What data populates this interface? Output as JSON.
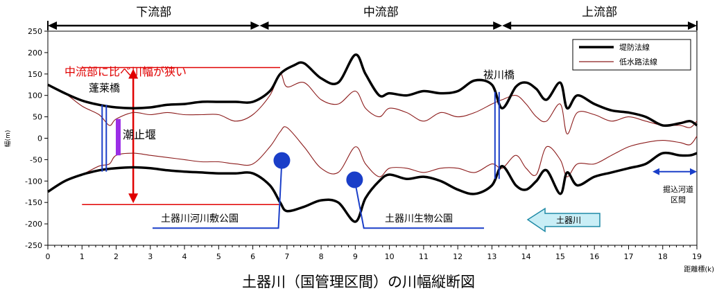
{
  "chart_data": {
    "type": "line",
    "title": "土器川（国管理区間）の川幅縦断図",
    "xlabel": "距離標(k)",
    "ylabel": "幅(m)",
    "xlim": [
      0,
      19
    ],
    "ylim": [
      -250,
      250
    ],
    "x_ticks": [
      0,
      1,
      2,
      3,
      4,
      5,
      6,
      7,
      8,
      9,
      10,
      11,
      12,
      13,
      14,
      15,
      16,
      17,
      18,
      19
    ],
    "y_ticks": [
      250,
      200,
      150,
      100,
      50,
      0,
      -50,
      -100,
      -150,
      -200,
      -250
    ],
    "grid": false,
    "legend_position": "top-right",
    "sections": [
      {
        "label": "下流部",
        "x_start": 0,
        "x_end": 6.2
      },
      {
        "label": "中流部",
        "x_start": 6.2,
        "x_end": 13.3
      },
      {
        "label": "上流部",
        "x_start": 13.3,
        "x_end": 19
      }
    ],
    "series": [
      {
        "name": "堤防法線",
        "color": "#000000",
        "upper": [
          [
            0,
            125
          ],
          [
            0.5,
            105
          ],
          [
            1,
            88
          ],
          [
            1.5,
            78
          ],
          [
            2,
            72
          ],
          [
            2.5,
            70
          ],
          [
            3,
            72
          ],
          [
            3.5,
            78
          ],
          [
            4,
            80
          ],
          [
            4.5,
            85
          ],
          [
            5,
            85
          ],
          [
            5.5,
            85
          ],
          [
            6,
            85
          ],
          [
            6.5,
            110
          ],
          [
            6.8,
            150
          ],
          [
            7.2,
            170
          ],
          [
            7.5,
            175
          ],
          [
            8,
            140
          ],
          [
            8.5,
            130
          ],
          [
            9,
            195
          ],
          [
            9.3,
            150
          ],
          [
            9.7,
            100
          ],
          [
            10,
            105
          ],
          [
            10.5,
            100
          ],
          [
            11,
            110
          ],
          [
            11.5,
            105
          ],
          [
            12,
            110
          ],
          [
            12.5,
            135
          ],
          [
            13,
            125
          ],
          [
            13.3,
            70
          ],
          [
            13.7,
            120
          ],
          [
            14,
            130
          ],
          [
            14.3,
            115
          ],
          [
            14.6,
            90
          ],
          [
            15,
            130
          ],
          [
            15.2,
            70
          ],
          [
            15.5,
            100
          ],
          [
            16,
            80
          ],
          [
            16.5,
            65
          ],
          [
            17,
            60
          ],
          [
            17.5,
            50
          ],
          [
            18,
            30
          ],
          [
            18.5,
            35
          ],
          [
            18.8,
            40
          ],
          [
            19,
            30
          ]
        ],
        "lower": [
          [
            0,
            -125
          ],
          [
            0.5,
            -100
          ],
          [
            1,
            -85
          ],
          [
            1.5,
            -75
          ],
          [
            2,
            -70
          ],
          [
            2.5,
            -68
          ],
          [
            3,
            -70
          ],
          [
            3.5,
            -75
          ],
          [
            4,
            -78
          ],
          [
            4.5,
            -80
          ],
          [
            5,
            -82
          ],
          [
            5.5,
            -82
          ],
          [
            6,
            -82
          ],
          [
            6.5,
            -110
          ],
          [
            6.8,
            -150
          ],
          [
            7,
            -170
          ],
          [
            7.5,
            -160
          ],
          [
            8,
            -145
          ],
          [
            8.5,
            -150
          ],
          [
            9,
            -195
          ],
          [
            9.3,
            -140
          ],
          [
            9.7,
            -100
          ],
          [
            10,
            -85
          ],
          [
            10.5,
            -95
          ],
          [
            11,
            -90
          ],
          [
            11.5,
            -100
          ],
          [
            12,
            -120
          ],
          [
            12.5,
            -130
          ],
          [
            13,
            -110
          ],
          [
            13.3,
            -65
          ],
          [
            13.7,
            -110
          ],
          [
            14,
            -120
          ],
          [
            14.3,
            -100
          ],
          [
            14.6,
            -75
          ],
          [
            15,
            -130
          ],
          [
            15.2,
            -80
          ],
          [
            15.5,
            -110
          ],
          [
            16,
            -90
          ],
          [
            16.5,
            -80
          ],
          [
            17,
            -70
          ],
          [
            17.5,
            -60
          ],
          [
            18,
            -35
          ],
          [
            18.5,
            -40
          ],
          [
            18.8,
            -40
          ],
          [
            19,
            -35
          ]
        ]
      },
      {
        "name": "低水路法線",
        "color": "#8b1a1a",
        "upper": [
          [
            0,
            125
          ],
          [
            0.5,
            105
          ],
          [
            1,
            75
          ],
          [
            1.5,
            55
          ],
          [
            1.8,
            30
          ],
          [
            2,
            45
          ],
          [
            2.5,
            60
          ],
          [
            3,
            55
          ],
          [
            3.5,
            60
          ],
          [
            4,
            55
          ],
          [
            4.5,
            55
          ],
          [
            5,
            55
          ],
          [
            5.5,
            40
          ],
          [
            6,
            55
          ],
          [
            6.5,
            100
          ],
          [
            6.8,
            150
          ],
          [
            7,
            120
          ],
          [
            7.5,
            130
          ],
          [
            8,
            90
          ],
          [
            8.5,
            80
          ],
          [
            9,
            110
          ],
          [
            9.3,
            70
          ],
          [
            9.7,
            50
          ],
          [
            10,
            70
          ],
          [
            10.5,
            60
          ],
          [
            11,
            40
          ],
          [
            11.5,
            60
          ],
          [
            12,
            50
          ],
          [
            12.5,
            60
          ],
          [
            13,
            80
          ],
          [
            13.3,
            90
          ],
          [
            13.7,
            100
          ],
          [
            14,
            80
          ],
          [
            14.3,
            50
          ],
          [
            14.6,
            40
          ],
          [
            15,
            80
          ],
          [
            15.2,
            10
          ],
          [
            15.5,
            60
          ],
          [
            16,
            55
          ],
          [
            16.5,
            40
          ],
          [
            17,
            50
          ],
          [
            17.5,
            40
          ],
          [
            18,
            30
          ],
          [
            18.5,
            30
          ],
          [
            18.8,
            25
          ],
          [
            19,
            40
          ]
        ],
        "lower": [
          [
            0,
            -125
          ],
          [
            0.5,
            -100
          ],
          [
            1,
            -85
          ],
          [
            1.5,
            -65
          ],
          [
            1.8,
            -60
          ],
          [
            2,
            -40
          ],
          [
            2.5,
            -35
          ],
          [
            3,
            -40
          ],
          [
            3.5,
            -45
          ],
          [
            4,
            -50
          ],
          [
            4.5,
            -55
          ],
          [
            5,
            -55
          ],
          [
            5.5,
            -60
          ],
          [
            6,
            -60
          ],
          [
            6.5,
            -20
          ],
          [
            6.8,
            15
          ],
          [
            7,
            25
          ],
          [
            7.5,
            -20
          ],
          [
            8,
            -70
          ],
          [
            8.5,
            -80
          ],
          [
            9,
            -20
          ],
          [
            9.3,
            -60
          ],
          [
            9.7,
            -90
          ],
          [
            10,
            -70
          ],
          [
            10.5,
            -70
          ],
          [
            11,
            -80
          ],
          [
            11.5,
            -70
          ],
          [
            12,
            -70
          ],
          [
            12.5,
            -80
          ],
          [
            13,
            -60
          ],
          [
            13.3,
            -70
          ],
          [
            13.7,
            -40
          ],
          [
            14,
            -70
          ],
          [
            14.3,
            -85
          ],
          [
            14.6,
            -20
          ],
          [
            15,
            -50
          ],
          [
            15.2,
            -90
          ],
          [
            15.5,
            -60
          ],
          [
            16,
            -60
          ],
          [
            16.5,
            -40
          ],
          [
            17,
            -20
          ],
          [
            17.5,
            -10
          ],
          [
            18,
            -5
          ],
          [
            18.5,
            -10
          ],
          [
            18.8,
            -15
          ],
          [
            19,
            5
          ]
        ]
      }
    ],
    "annotations": {
      "narrow_label": "中流部に比べ川幅が狭い",
      "narrow_range": [
        -155,
        165
      ],
      "bridges": [
        {
          "label": "蓬莱橋",
          "x": 1.65,
          "y_top": 78,
          "y_bottom": -78
        },
        {
          "label": "祓川橋",
          "x": 13.15,
          "y_top": 108,
          "y_bottom": -95
        }
      ],
      "weir": {
        "label": "潮止堰",
        "x": 2.05,
        "y_top": 45,
        "y_bottom": -40
      },
      "parks": [
        {
          "label": "土器川河川敷公園",
          "x": 6.85,
          "y": -52
        },
        {
          "label": "土器川生物公園",
          "x": 8.98,
          "y": -97
        }
      ],
      "excavation": {
        "label_line1": "掘込河道",
        "label_line2": "区間",
        "x_start": 17.7,
        "x_end": 19,
        "y": -78
      },
      "flow_arrow": {
        "label": "土器川"
      }
    }
  }
}
